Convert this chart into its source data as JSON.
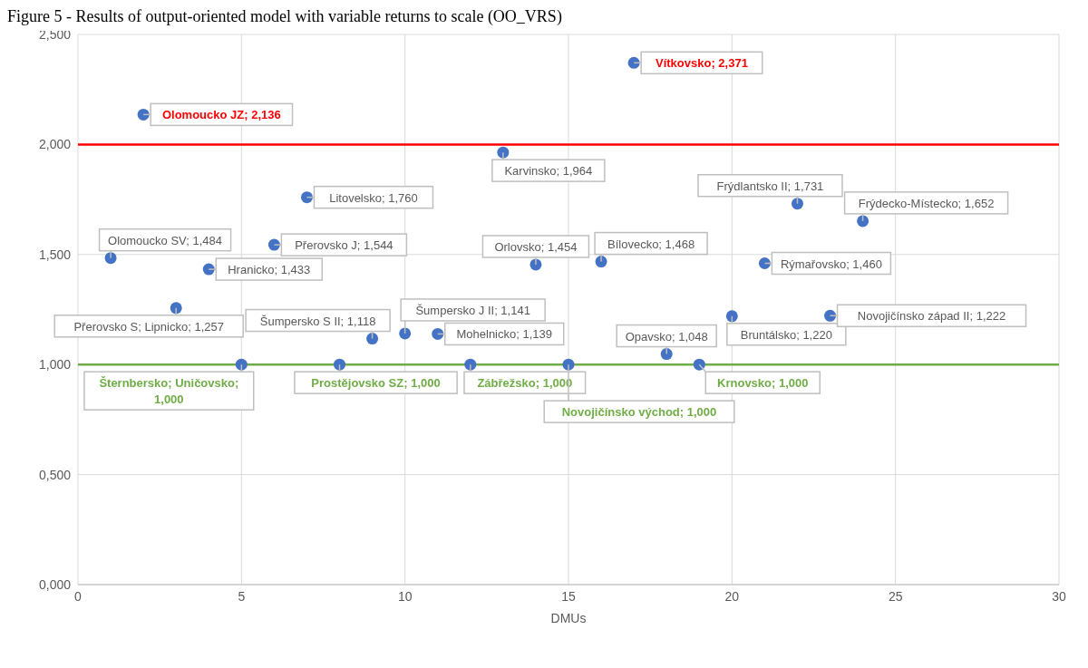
{
  "chart_data": {
    "type": "scatter",
    "title": "Figure 5 - Results of output-oriented model with variable returns to scale (OO_VRS)",
    "xlabel": "DMUs",
    "x": [
      1,
      2,
      3,
      4,
      5,
      6,
      7,
      8,
      9,
      10,
      11,
      12,
      13,
      14,
      15,
      16,
      17,
      18,
      19,
      20,
      21,
      22,
      23,
      24
    ],
    "series": [
      {
        "color": "#4472c4",
        "values": [
          1.484,
          2.136,
          1.257,
          1.433,
          1.0,
          1.544,
          1.76,
          1.0,
          1.118,
          1.141,
          1.139,
          1.0,
          1.964,
          1.454,
          1.0,
          1.468,
          2.371,
          1.048,
          1.0,
          1.22,
          1.46,
          1.731,
          1.222,
          1.652
        ],
        "value_labels": [
          "Olomoucko SV; 1,484",
          "Olomoucko JZ; 2,136",
          "Přerovsko S; Lipnicko; 1,257",
          "Hranicko; 1,433",
          "Šternbersko; Uničovsko; 1,000",
          "Přerovsko J; 1,544",
          "Litovelsko; 1,760",
          "Prostějovsko SZ; 1,000",
          "Šumpersko S II; 1,118",
          "Šumpersko J II; 1,141",
          "Mohelnicko; 1,139",
          "Zábřežsko; 1,000",
          "Karvinsko; 1,964",
          "Orlovsko; 1,454",
          "Novojičínsko východ; 1,000",
          "Bílovecko; 1,468",
          "Vítkovsko; 2,371",
          "Opavsko; 1,048",
          "Krnovsko; 1,000",
          "Bruntálsko; 1,220",
          "Rýmařovsko; 1,460",
          "Frýdlantsko II; 1,731",
          "Novojičínsko západ II; 1,222",
          "Frýdecko-Místecko; 1,652"
        ]
      }
    ],
    "xlim": [
      0,
      30
    ],
    "xticks": [
      0,
      5,
      10,
      15,
      20,
      25,
      30
    ],
    "ylim": [
      0,
      2.5
    ],
    "yticks": [
      {
        "value": 0,
        "label": "0,000"
      },
      {
        "value": 0.5,
        "label": "0,500"
      },
      {
        "value": 1,
        "label": "1,000"
      },
      {
        "value": 1.5,
        "label": "1,500"
      },
      {
        "value": 2,
        "label": "2,000"
      },
      {
        "value": 2.5,
        "label": "2,500"
      }
    ],
    "ref_lines": [
      {
        "axis": "y",
        "value": 2,
        "color": "#ff0000"
      },
      {
        "axis": "y",
        "value": 1,
        "color": "#70ad47"
      }
    ],
    "grid": true,
    "marker": "circle",
    "legend": false
  }
}
